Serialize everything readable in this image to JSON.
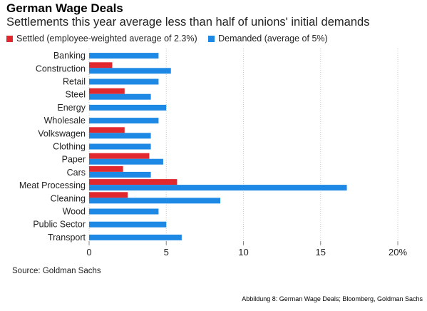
{
  "title": "German Wage Deals",
  "subtitle": "Settlements this year average less than half of unions' initial demands",
  "source": "Source: Goldman Sachs",
  "caption": "Abbildung 8: German Wage Deals; Bloomberg, Goldman Sachs",
  "chart_data": {
    "type": "bar",
    "orientation": "horizontal",
    "title": "German Wage Deals",
    "subtitle": "Settlements this year average less than half of unions' initial demands",
    "categories": [
      "Banking",
      "Construction",
      "Retail",
      "Steel",
      "Energy",
      "Wholesale",
      "Volkswagen",
      "Clothing",
      "Paper",
      "Cars",
      "Meat Processing",
      "Cleaning",
      "Wood",
      "Public Sector",
      "Transport"
    ],
    "series": [
      {
        "name": "Settled (employee-weighted average of 2.3%)",
        "color": "#e0282e",
        "values": [
          null,
          1.5,
          null,
          2.3,
          null,
          null,
          2.3,
          null,
          3.9,
          2.2,
          5.7,
          2.5,
          null,
          null,
          null
        ]
      },
      {
        "name": "Demanded (average of 5%)",
        "color": "#1e88e5",
        "values": [
          4.5,
          5.3,
          4.5,
          4.0,
          5.0,
          4.5,
          4.0,
          4.0,
          4.8,
          4.0,
          16.7,
          8.5,
          4.5,
          5.0,
          6.0
        ]
      }
    ],
    "xlim": [
      0,
      20
    ],
    "xticks": [
      "0",
      "5",
      "10",
      "15",
      "20%"
    ],
    "xtick_values": [
      0,
      5,
      10,
      15,
      20
    ],
    "legend_position": "top-left",
    "grid": "vertical-dotted"
  }
}
